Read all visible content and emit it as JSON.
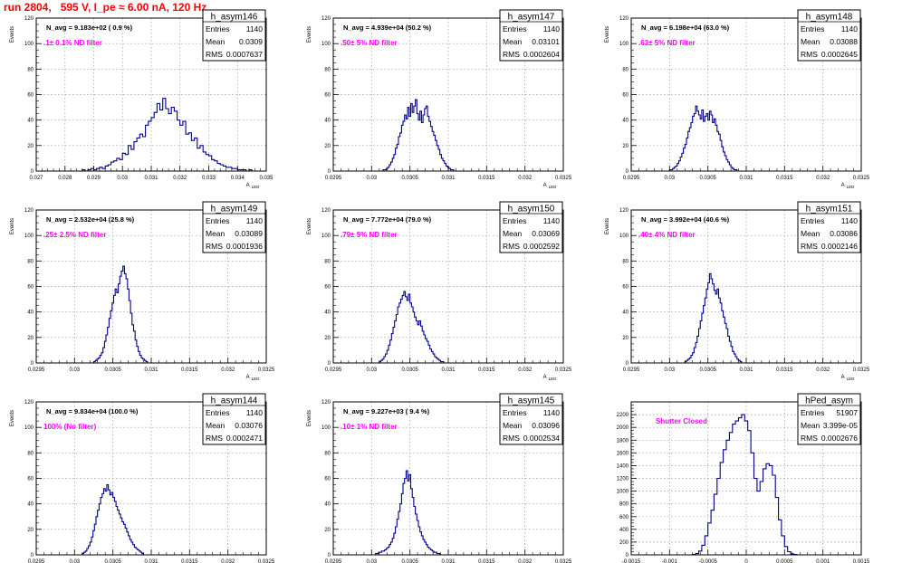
{
  "header": {
    "run_title": "run 2804,   595 V, I_pe ≈ 6.00 nA, 120 Hz"
  },
  "style": {
    "histogram_color": "#00008b",
    "frame_color": "#000000",
    "grid_color": "#9a9a9a",
    "title_color": "#ff0000",
    "note_color": "#ff00ff"
  },
  "chart_data": [
    {
      "type": "histogram",
      "name": "h_asym146",
      "ylabel": "Events",
      "xlabel": "A_LED",
      "stats": {
        "Entries": "1140",
        "Mean": "0.0309",
        "RMS": "0.0007637"
      },
      "navg": "N_avg = 9.183e+02 ( 0.9 %)",
      "note": ".1± 0.1% ND filter",
      "ylim": [
        0,
        120
      ],
      "yticks": [
        0,
        20,
        40,
        60,
        80,
        100,
        120
      ],
      "xlim": [
        0.027,
        0.035
      ],
      "xticks": [
        0.027,
        0.028,
        0.029,
        0.03,
        0.031,
        0.032,
        0.033,
        0.034,
        0.035
      ],
      "xticklabels": [
        "0.027",
        "0.028",
        "0.029",
        "0.03",
        "0.031",
        "0.032",
        "0.033",
        "0.034",
        "0.035"
      ],
      "hist": {
        "x_start": 0.0286,
        "bin_width": 0.0001,
        "counts": [
          1,
          0,
          1,
          2,
          1,
          2,
          3,
          2,
          4,
          5,
          7,
          8,
          10,
          9,
          14,
          13,
          20,
          17,
          23,
          26,
          29,
          27,
          36,
          39,
          42,
          46,
          53,
          48,
          57,
          49,
          45,
          50,
          47,
          40,
          36,
          39,
          29,
          30,
          24,
          26,
          18,
          20,
          15,
          13,
          12,
          9,
          8,
          6,
          5,
          4,
          3,
          3,
          2,
          2,
          1,
          1,
          1,
          0,
          1
        ]
      }
    },
    {
      "type": "histogram",
      "name": "h_asym147",
      "ylabel": "Events",
      "xlabel": "A_LED",
      "stats": {
        "Entries": "1140",
        "Mean": "0.03101",
        "RMS": "0.0002604"
      },
      "navg": "N_avg = 4.939e+04 (50.2 %)",
      "note": ".50± 5% ND filter",
      "ylim": [
        0,
        120
      ],
      "yticks": [
        0,
        20,
        40,
        60,
        80,
        100,
        120
      ],
      "xlim": [
        0.0295,
        0.0325
      ],
      "xticks": [
        0.0295,
        0.03,
        0.0305,
        0.031,
        0.0315,
        0.032,
        0.0325
      ],
      "xticklabels": [
        "0.0295",
        "0.03",
        "0.0305",
        "0.031",
        "0.0315",
        "0.032",
        "0.0325"
      ],
      "hist": {
        "x_start": 0.03015,
        "bin_width": 2e-05,
        "counts": [
          1,
          1,
          2,
          3,
          5,
          7,
          10,
          13,
          18,
          21,
          27,
          30,
          36,
          39,
          44,
          41,
          50,
          43,
          53,
          46,
          51,
          56,
          45,
          40,
          47,
          38,
          44,
          49,
          51,
          43,
          39,
          35,
          31,
          28,
          24,
          20,
          17,
          13,
          10,
          8,
          6,
          4,
          3,
          2,
          1,
          1
        ]
      }
    },
    {
      "type": "histogram",
      "name": "h_asym148",
      "ylabel": "Events",
      "xlabel": "A_LED",
      "stats": {
        "Entries": "1140",
        "Mean": "0.03088",
        "RMS": "0.0002645"
      },
      "navg": "N_avg = 6.198e+04 (63.0 %)",
      "note": ".63± 5% ND filter",
      "ylim": [
        0,
        120
      ],
      "yticks": [
        0,
        20,
        40,
        60,
        80,
        100,
        120
      ],
      "xlim": [
        0.0295,
        0.0325
      ],
      "xticks": [
        0.0295,
        0.03,
        0.0305,
        0.031,
        0.0315,
        0.032,
        0.0325
      ],
      "xticklabels": [
        "0.0295",
        "0.03",
        "0.0305",
        "0.031",
        "0.0315",
        "0.032",
        "0.0325"
      ],
      "hist": {
        "x_start": 0.03,
        "bin_width": 2e-05,
        "counts": [
          1,
          1,
          2,
          3,
          4,
          6,
          8,
          11,
          14,
          18,
          21,
          26,
          31,
          34,
          38,
          43,
          45,
          51,
          47,
          44,
          41,
          48,
          39,
          43,
          45,
          40,
          47,
          44,
          38,
          41,
          36,
          31,
          29,
          24,
          19,
          15,
          12,
          9,
          7,
          5,
          3,
          2,
          1,
          1
        ]
      }
    },
    {
      "type": "histogram",
      "name": "h_asym149",
      "ylabel": "Events",
      "xlabel": "A_LED",
      "stats": {
        "Entries": "1140",
        "Mean": "0.03089",
        "RMS": "0.0001936"
      },
      "navg": "N_avg = 2.532e+04 (25.8 %)",
      "note": ".25± 2.5% ND filter",
      "ylim": [
        0,
        120
      ],
      "yticks": [
        0,
        20,
        40,
        60,
        80,
        100,
        120
      ],
      "xlim": [
        0.0295,
        0.0325
      ],
      "xticks": [
        0.0295,
        0.03,
        0.0305,
        0.031,
        0.0315,
        0.032,
        0.0325
      ],
      "xticklabels": [
        "0.0295",
        "0.03",
        "0.0305",
        "0.031",
        "0.0315",
        "0.032",
        "0.0325"
      ],
      "hist": {
        "x_start": 0.03025,
        "bin_width": 2e-05,
        "counts": [
          1,
          2,
          3,
          4,
          6,
          8,
          12,
          17,
          22,
          28,
          35,
          41,
          47,
          53,
          58,
          55,
          62,
          68,
          72,
          76,
          70,
          66,
          58,
          49,
          39,
          30,
          25,
          18,
          13,
          9,
          6,
          4,
          3,
          2,
          1
        ]
      }
    },
    {
      "type": "histogram",
      "name": "h_asym150",
      "ylabel": "Events",
      "xlabel": "A_LED",
      "stats": {
        "Entries": "1140",
        "Mean": "0.03069",
        "RMS": "0.0002592"
      },
      "navg": "N_avg = 7.772e+04 (79.0 %)",
      "note": ".79± 5% ND filter",
      "ylim": [
        0,
        120
      ],
      "yticks": [
        0,
        20,
        40,
        60,
        80,
        100,
        120
      ],
      "xlim": [
        0.0295,
        0.0325
      ],
      "xticks": [
        0.0295,
        0.03,
        0.0305,
        0.031,
        0.0315,
        0.032,
        0.0325
      ],
      "xticklabels": [
        "0.0295",
        "0.03",
        "0.0305",
        "0.031",
        "0.0315",
        "0.032",
        "0.0325"
      ],
      "hist": {
        "x_start": 0.0301,
        "bin_width": 2e-05,
        "counts": [
          1,
          2,
          3,
          5,
          7,
          10,
          14,
          18,
          23,
          28,
          33,
          38,
          44,
          47,
          50,
          53,
          56,
          52,
          49,
          54,
          47,
          44,
          40,
          36,
          33,
          30,
          33,
          29,
          25,
          22,
          19,
          17,
          14,
          11,
          9,
          7,
          5,
          4,
          3,
          2,
          1,
          1
        ]
      }
    },
    {
      "type": "histogram",
      "name": "h_asym151",
      "ylabel": "Events",
      "xlabel": "A_LED",
      "stats": {
        "Entries": "1140",
        "Mean": "0.03086",
        "RMS": "0.0002146"
      },
      "navg": "N_avg = 3.992e+04 (40.6 %)",
      "note": ".40± 4% ND filter",
      "ylim": [
        0,
        120
      ],
      "yticks": [
        0,
        20,
        40,
        60,
        80,
        100,
        120
      ],
      "xlim": [
        0.0295,
        0.0325
      ],
      "xticks": [
        0.0295,
        0.03,
        0.0305,
        0.031,
        0.0315,
        0.032,
        0.0325
      ],
      "xticklabels": [
        "0.0295",
        "0.03",
        "0.0305",
        "0.031",
        "0.0315",
        "0.032",
        "0.0325"
      ],
      "hist": {
        "x_start": 0.0302,
        "bin_width": 2e-05,
        "counts": [
          1,
          2,
          3,
          4,
          6,
          8,
          12,
          16,
          21,
          27,
          33,
          39,
          45,
          51,
          58,
          63,
          70,
          66,
          62,
          57,
          54,
          58,
          51,
          47,
          41,
          36,
          31,
          27,
          21,
          17,
          13,
          9,
          7,
          5,
          3,
          2,
          1
        ]
      }
    },
    {
      "type": "histogram",
      "name": "h_asym144",
      "ylabel": "Events",
      "xlabel": "A_LED",
      "stats": {
        "Entries": "1140",
        "Mean": "0.03076",
        "RMS": "0.0002471"
      },
      "navg": "N_avg = 9.834e+04 (100.0 %)",
      "note": "100% (No filter)",
      "ylim": [
        0,
        120
      ],
      "yticks": [
        0,
        20,
        40,
        60,
        80,
        100,
        120
      ],
      "xlim": [
        0.0295,
        0.0325
      ],
      "xticks": [
        0.0295,
        0.03,
        0.0305,
        0.031,
        0.0315,
        0.032,
        0.0325
      ],
      "xticklabels": [
        "0.0295",
        "0.03",
        "0.0305",
        "0.031",
        "0.0315",
        "0.032",
        "0.0325"
      ],
      "hist": {
        "x_start": 0.0301,
        "bin_width": 2e-05,
        "counts": [
          1,
          2,
          3,
          5,
          7,
          10,
          14,
          19,
          24,
          30,
          35,
          40,
          45,
          48,
          52,
          50,
          55,
          51,
          47,
          49,
          45,
          42,
          38,
          35,
          32,
          29,
          26,
          24,
          21,
          18,
          15,
          12,
          10,
          8,
          6,
          5,
          4,
          3,
          2,
          1
        ]
      }
    },
    {
      "type": "histogram",
      "name": "h_asym145",
      "ylabel": "Events",
      "xlabel": "A_LED",
      "stats": {
        "Entries": "1140",
        "Mean": "0.03096",
        "RMS": "0.0002534"
      },
      "navg": "N_avg = 9.227e+03 ( 9.4 %)",
      "note": ".10± 1% ND filter",
      "ylim": [
        0,
        120
      ],
      "yticks": [
        0,
        20,
        40,
        60,
        80,
        100,
        120
      ],
      "xlim": [
        0.0295,
        0.0325
      ],
      "xticks": [
        0.0295,
        0.03,
        0.0305,
        0.031,
        0.0315,
        0.032,
        0.0325
      ],
      "xticklabels": [
        "0.0295",
        "0.03",
        "0.0305",
        "0.031",
        "0.0315",
        "0.032",
        "0.0325"
      ],
      "hist": {
        "x_start": 0.03005,
        "bin_width": 2e-05,
        "counts": [
          1,
          1,
          2,
          2,
          3,
          3,
          4,
          5,
          6,
          8,
          10,
          13,
          17,
          22,
          28,
          34,
          40,
          48,
          56,
          60,
          66,
          58,
          63,
          52,
          45,
          38,
          32,
          27,
          22,
          18,
          15,
          12,
          10,
          8,
          6,
          5,
          4,
          3,
          2,
          2,
          1,
          1
        ]
      }
    },
    {
      "type": "histogram",
      "name": "hPed_asym",
      "ylabel": "",
      "xlabel": "",
      "stats": {
        "Entries": "51907",
        "Mean": "3.399e-05",
        "RMS": "0.0002676"
      },
      "navg": "",
      "note": "Shutter Closed",
      "ylim": [
        0,
        2400
      ],
      "yticks": [
        0,
        200,
        400,
        600,
        800,
        1000,
        1200,
        1400,
        1600,
        1800,
        2000,
        2200
      ],
      "xlim": [
        -0.0015,
        0.0015
      ],
      "xticks": [
        -0.0015,
        -0.001,
        -0.0005,
        0,
        0.0005,
        0.001,
        0.0015
      ],
      "xticklabels": [
        "-0.0015",
        "-0.001",
        "-0.0005",
        "0",
        "0.0005",
        "0.001",
        "0.0015"
      ],
      "hist": {
        "x_start": -0.0007,
        "bin_width": 4e-05,
        "counts": [
          5,
          20,
          60,
          150,
          300,
          500,
          700,
          950,
          1200,
          1450,
          1650,
          1800,
          1920,
          2050,
          2100,
          2150,
          2200,
          2100,
          1950,
          1600,
          1200,
          1000,
          1150,
          1350,
          1430,
          1400,
          1250,
          900,
          550,
          300,
          130,
          50,
          15,
          5
        ]
      }
    }
  ]
}
